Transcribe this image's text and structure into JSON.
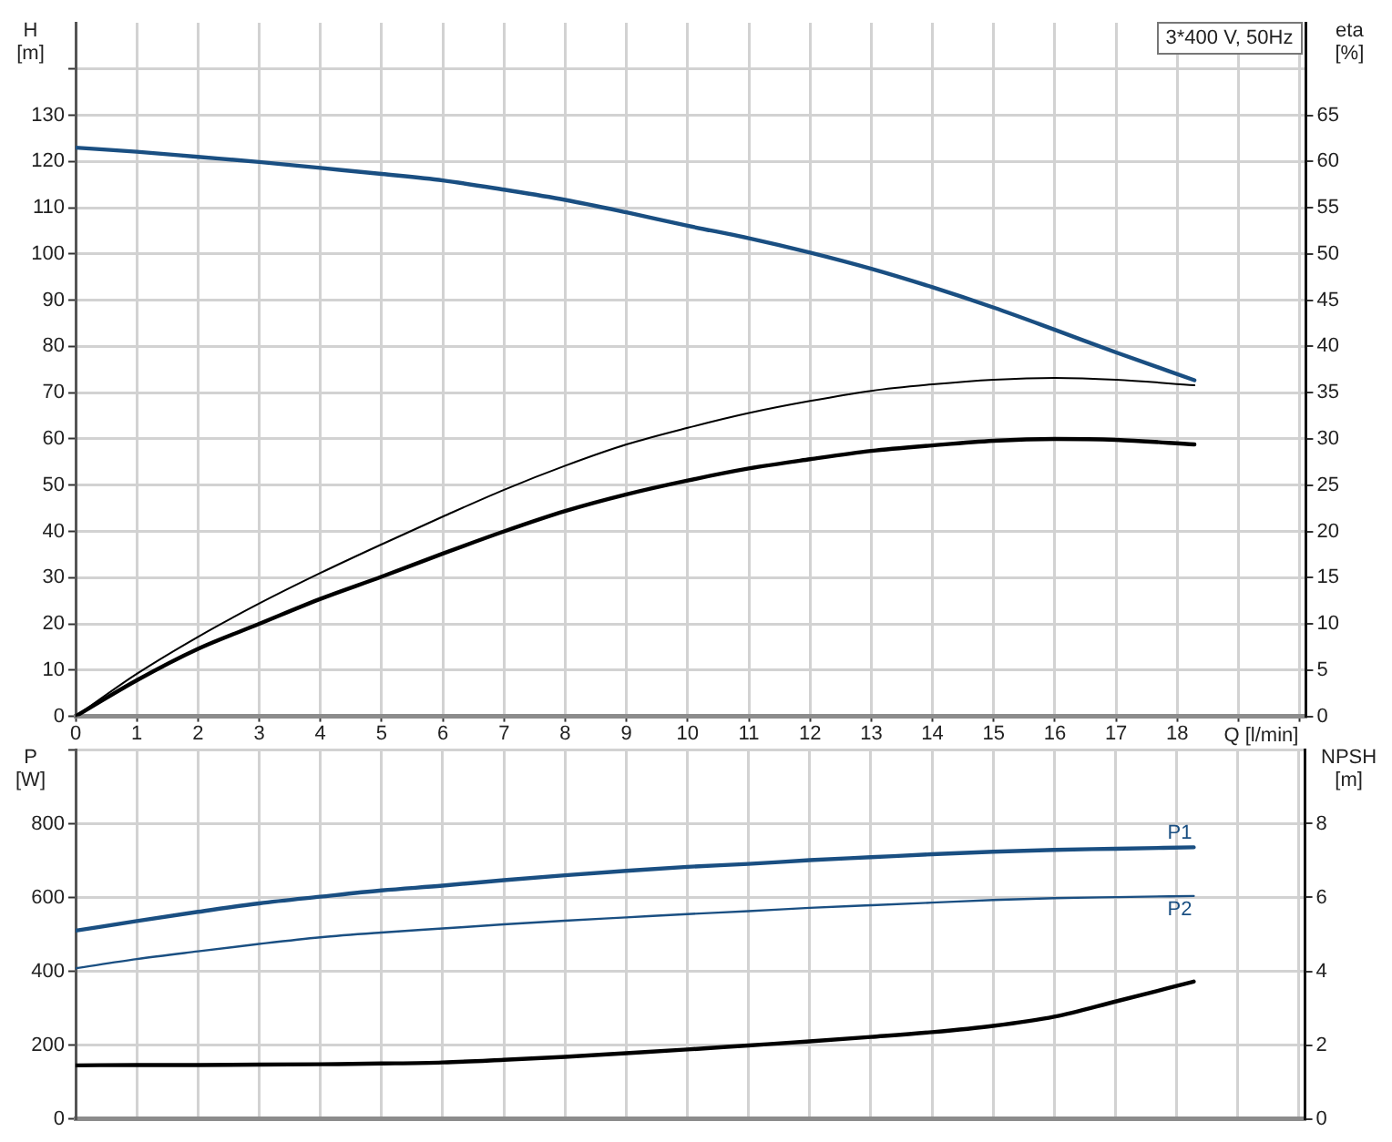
{
  "chart_data": [
    {
      "type": "line",
      "title": "3*400 V, 50Hz",
      "xlabel": "Q [l/min]",
      "ylabel": "H [m]",
      "y2label": "eta [%]",
      "x": [
        0,
        1,
        2,
        3,
        4,
        5,
        6,
        7,
        8,
        9,
        10,
        11,
        12,
        13,
        14,
        15,
        16,
        17,
        18.28
      ],
      "series": [
        {
          "color": "#1a4f82",
          "values": [
            123,
            122.1,
            121,
            119.9,
            118.6,
            117.3,
            115.9,
            113.9,
            111.7,
            109,
            106.1,
            103.4,
            100.3,
            96.8,
            92.8,
            88.4,
            83.6,
            78.7,
            72.7
          ]
        },
        {
          "color": "#000000",
          "axis": "y2",
          "values": [
            0,
            4.6,
            8.6,
            12.2,
            15.5,
            18.6,
            21.6,
            24.5,
            27.1,
            29.4,
            31.2,
            32.8,
            34.1,
            35.2,
            35.9,
            36.4,
            36.6,
            36.4,
            35.8
          ]
        },
        {
          "color": "#000000",
          "axis": "y2",
          "values": [
            0,
            3.9,
            7.3,
            10,
            12.7,
            15.1,
            17.6,
            20,
            22.2,
            24,
            25.5,
            26.8,
            27.8,
            28.7,
            29.3,
            29.8,
            30,
            29.9,
            29.4
          ]
        }
      ],
      "xlim": [
        0,
        20.1
      ],
      "xticks": [
        0,
        1,
        2,
        3,
        4,
        5,
        6,
        7,
        8,
        9,
        10,
        11,
        12,
        13,
        14,
        15,
        16,
        17,
        18,
        {
          "value": 19,
          "label": null
        },
        {
          "value": 20,
          "label": null
        }
      ],
      "ylim": [
        0,
        150
      ],
      "yticks": [
        0,
        10,
        20,
        30,
        40,
        50,
        60,
        70,
        80,
        90,
        100,
        110,
        120,
        130,
        {
          "value": 140,
          "label": null
        }
      ],
      "y2lim": [
        0,
        75
      ],
      "y2ticks": [
        0,
        5,
        10,
        15,
        20,
        25,
        30,
        35,
        40,
        45,
        50,
        55,
        60,
        65
      ],
      "grid": true,
      "marker": "none"
    },
    {
      "type": "line",
      "ylabel": "P [W]",
      "y2label": "NPSH [m]",
      "x": [
        0,
        1,
        2,
        3,
        4,
        5,
        6,
        7,
        8,
        9,
        10,
        11,
        12,
        13,
        14,
        15,
        16,
        17,
        18.28
      ],
      "series": [
        {
          "name": "P1",
          "color": "#1a4f82",
          "values": [
            510,
            536,
            561,
            584,
            602,
            619,
            632,
            647,
            660,
            672,
            683,
            691,
            701,
            709,
            717,
            724,
            729,
            732,
            736
          ]
        },
        {
          "name": "P2",
          "color": "#1a4f82",
          "values": [
            408,
            433,
            454,
            474,
            492,
            505,
            516,
            527,
            537,
            546,
            555,
            563,
            572,
            579,
            586,
            593,
            598,
            601,
            604
          ]
        },
        {
          "color": "#000000",
          "axis": "y2",
          "values": [
            1.45,
            1.46,
            1.46,
            1.47,
            1.48,
            1.5,
            1.53,
            1.6,
            1.68,
            1.78,
            1.88,
            1.99,
            2.1,
            2.22,
            2.35,
            2.52,
            2.77,
            3.18,
            3.72
          ]
        }
      ],
      "xlim": [
        0,
        20.1
      ],
      "xticks": [
        0,
        1,
        2,
        3,
        4,
        5,
        6,
        7,
        8,
        9,
        10,
        11,
        12,
        13,
        14,
        15,
        16,
        17,
        18,
        19,
        20
      ],
      "ylim": [
        0,
        1000
      ],
      "yticks": [
        0,
        200,
        400,
        600,
        800,
        {
          "value": 1000,
          "label": null
        }
      ],
      "y2lim": [
        0,
        10
      ],
      "y2ticks": [
        0,
        2,
        4,
        6,
        8
      ],
      "tick_labels": "y",
      "grid": true,
      "marker": "none"
    }
  ]
}
